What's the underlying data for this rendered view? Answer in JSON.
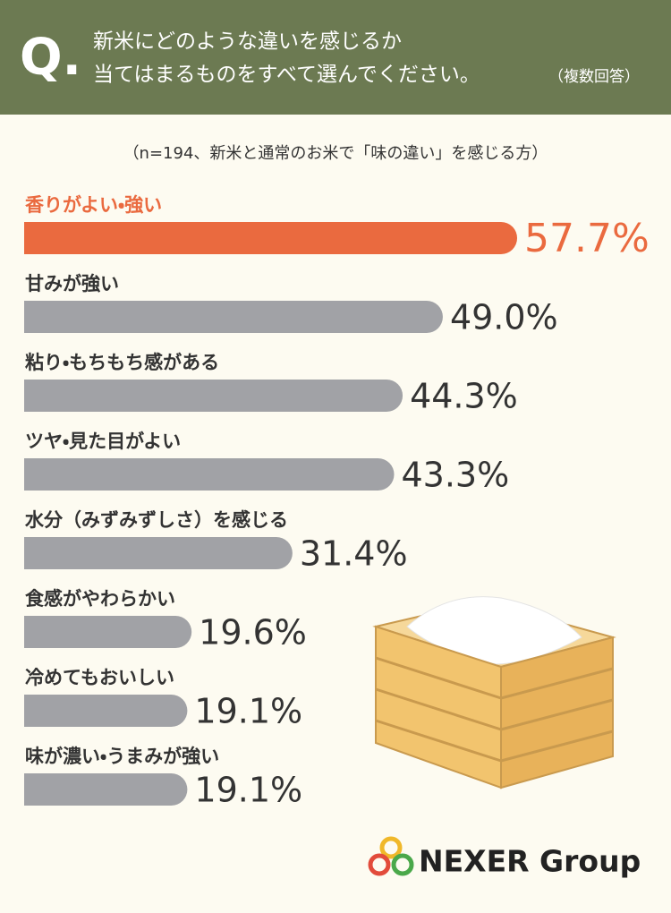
{
  "chart_data": {
    "type": "bar",
    "question_mark": "Q.",
    "title_lines": [
      "新米にどのような違いを感じるか",
      "当てはまるものをすべて選んでください。"
    ],
    "title_note": "（複数回答）",
    "subtitle": "（n=194、新米と通常のお米で「味の違い」を感じる方）",
    "categories": [
      "香りがよい・強い",
      "甘みが強い",
      "粘り・もちもち感がある",
      "ツヤ・見た目がよい",
      "水分（みずみずしさ）を感じる",
      "食感がやわらかい",
      "冷めてもおいしい",
      "味が濃い・うまみが強い"
    ],
    "values": [
      57.7,
      49.0,
      44.3,
      43.3,
      31.4,
      19.6,
      19.1,
      19.1
    ],
    "value_labels": [
      "57.7%",
      "49.0%",
      "44.3%",
      "43.3%",
      "31.4%",
      "19.6%",
      "19.1%",
      "19.1%"
    ],
    "colors": [
      "#ea6a3f",
      "#a1a2a6",
      "#a1a2a6",
      "#a1a2a6",
      "#a1a2a6",
      "#a1a2a6",
      "#a1a2a6",
      "#a1a2a6"
    ]
  },
  "logo": "NEXER Group"
}
